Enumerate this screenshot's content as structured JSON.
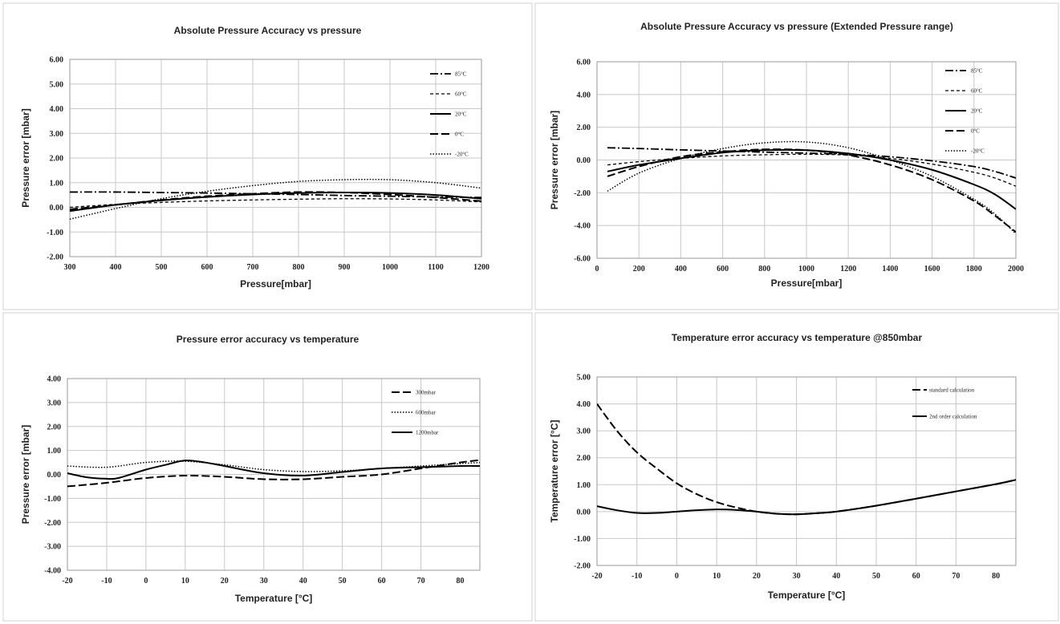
{
  "chart_data": [
    {
      "type": "line",
      "title": "Absolute Pressure Accuracy vs pressure",
      "xlabel": "Pressure[mbar]",
      "ylabel": "Pressure error [mbar]",
      "xlim": [
        300,
        1200
      ],
      "ylim": [
        -2,
        6
      ],
      "xticks": [
        300,
        400,
        500,
        600,
        700,
        800,
        900,
        1000,
        1100,
        1200
      ],
      "xtick_labels": [
        "300",
        "400",
        "500",
        "600",
        "700",
        "800",
        "900",
        "1000",
        "1100",
        "1200"
      ],
      "yticks": [
        -2,
        -1,
        0,
        1,
        2,
        3,
        4,
        5,
        6
      ],
      "ytick_labels": [
        "-2.00",
        "-1.00",
        "0.00",
        "1.00",
        "2.00",
        "3.00",
        "4.00",
        "5.00",
        "6.00"
      ],
      "grid": true,
      "legend_position": "top-right",
      "series": [
        {
          "name": "85°C",
          "dash": "dashdot",
          "x": [
            300,
            400,
            500,
            600,
            700,
            800,
            900,
            1000,
            1100,
            1200
          ],
          "y": [
            0.62,
            0.62,
            0.6,
            0.58,
            0.55,
            0.52,
            0.48,
            0.45,
            0.42,
            0.4
          ]
        },
        {
          "name": "60°C",
          "dash": "short",
          "x": [
            300,
            400,
            500,
            600,
            700,
            800,
            900,
            1000,
            1100,
            1200
          ],
          "y": [
            0.0,
            0.12,
            0.2,
            0.26,
            0.3,
            0.33,
            0.35,
            0.34,
            0.3,
            0.22
          ]
        },
        {
          "name": "20°C",
          "dash": "solid",
          "x": [
            300,
            400,
            500,
            600,
            700,
            800,
            900,
            1000,
            1100,
            1200
          ],
          "y": [
            -0.15,
            0.1,
            0.28,
            0.42,
            0.52,
            0.58,
            0.6,
            0.58,
            0.5,
            0.35
          ]
        },
        {
          "name": "0°C",
          "dash": "long",
          "x": [
            300,
            400,
            500,
            600,
            700,
            800,
            900,
            1000,
            1100,
            1200
          ],
          "y": [
            -0.08,
            0.1,
            0.3,
            0.45,
            0.55,
            0.62,
            0.6,
            0.52,
            0.4,
            0.25
          ]
        },
        {
          "name": "-20°C",
          "dash": "dotted",
          "x": [
            300,
            400,
            500,
            600,
            700,
            800,
            900,
            1000,
            1100,
            1200
          ],
          "y": [
            -0.48,
            -0.05,
            0.35,
            0.65,
            0.88,
            1.05,
            1.12,
            1.12,
            1.0,
            0.78
          ]
        }
      ]
    },
    {
      "type": "line",
      "title": "Absolute Pressure Accuracy vs pressure (Extended Pressure range)",
      "xlabel": "Pressure[mbar]",
      "ylabel": "Pressure error [mbar]",
      "xlim": [
        0,
        2000
      ],
      "ylim": [
        -6,
        6
      ],
      "xticks": [
        0,
        200,
        400,
        600,
        800,
        1000,
        1200,
        1400,
        1600,
        1800,
        2000
      ],
      "xtick_labels": [
        "0",
        "200",
        "400",
        "600",
        "800",
        "1000",
        "1200",
        "1400",
        "1600",
        "1800",
        "2000"
      ],
      "yticks": [
        -6,
        -4,
        -2,
        0,
        2,
        4,
        6
      ],
      "ytick_labels": [
        "-6.00",
        "-4.00",
        "-2.00",
        "0.00",
        "2.00",
        "4.00",
        "6.00"
      ],
      "grid": true,
      "legend_position": "top-right",
      "series": [
        {
          "name": "85°C",
          "dash": "dashdot",
          "x": [
            50,
            200,
            400,
            600,
            800,
            1000,
            1200,
            1400,
            1600,
            1800,
            1900,
            2000
          ],
          "y": [
            0.75,
            0.7,
            0.62,
            0.55,
            0.48,
            0.42,
            0.35,
            0.2,
            -0.05,
            -0.4,
            -0.7,
            -1.1
          ]
        },
        {
          "name": "60°C",
          "dash": "short",
          "x": [
            50,
            200,
            400,
            600,
            800,
            1000,
            1200,
            1400,
            1600,
            1800,
            1900,
            2000
          ],
          "y": [
            -0.3,
            -0.1,
            0.1,
            0.25,
            0.32,
            0.35,
            0.3,
            0.1,
            -0.25,
            -0.75,
            -1.1,
            -1.6
          ]
        },
        {
          "name": "20°C",
          "dash": "solid",
          "x": [
            50,
            200,
            400,
            600,
            800,
            1000,
            1200,
            1400,
            1600,
            1800,
            1900,
            2000
          ],
          "y": [
            -0.7,
            -0.3,
            0.1,
            0.45,
            0.6,
            0.6,
            0.4,
            0.0,
            -0.6,
            -1.5,
            -2.1,
            -3.0
          ]
        },
        {
          "name": "0°C",
          "dash": "long",
          "x": [
            50,
            200,
            400,
            600,
            800,
            1000,
            1200,
            1400,
            1600,
            1800,
            1900,
            2000
          ],
          "y": [
            -1.0,
            -0.4,
            0.2,
            0.5,
            0.65,
            0.6,
            0.3,
            -0.3,
            -1.2,
            -2.5,
            -3.4,
            -4.4
          ]
        },
        {
          "name": "-20°C",
          "dash": "dotted",
          "x": [
            50,
            200,
            400,
            600,
            800,
            1000,
            1200,
            1400,
            1600,
            1800,
            1900,
            2000
          ],
          "y": [
            -1.9,
            -0.8,
            0.1,
            0.7,
            1.05,
            1.1,
            0.75,
            0.0,
            -1.0,
            -2.4,
            -3.3,
            -4.5
          ]
        }
      ]
    },
    {
      "type": "line",
      "title": "Pressure error accuracy vs temperature",
      "xlabel": "Temperature [°C]",
      "ylabel": "Pressure error [mbar]",
      "xlim": [
        -20,
        85
      ],
      "ylim": [
        -4,
        4
      ],
      "xticks": [
        -20,
        -10,
        0,
        10,
        20,
        30,
        40,
        50,
        60,
        70,
        80
      ],
      "xtick_labels": [
        "-20",
        "-10",
        "0",
        "10",
        "20",
        "30",
        "40",
        "50",
        "60",
        "70",
        "80"
      ],
      "yticks": [
        -4,
        -3,
        -2,
        -1,
        0,
        1,
        2,
        3,
        4
      ],
      "ytick_labels": [
        "-4.00",
        "-3.00",
        "-2.00",
        "-1.00",
        "0.00",
        "1.00",
        "2.00",
        "3.00",
        "4.00"
      ],
      "grid": true,
      "legend_position": "top-right",
      "series": [
        {
          "name": "300mbar",
          "dash": "long",
          "x": [
            -20,
            -10,
            0,
            10,
            20,
            30,
            40,
            50,
            60,
            70,
            80,
            85
          ],
          "y": [
            -0.5,
            -0.35,
            -0.15,
            -0.05,
            -0.1,
            -0.2,
            -0.2,
            -0.1,
            0.0,
            0.25,
            0.5,
            0.6
          ]
        },
        {
          "name": "600mbar",
          "dash": "dotted",
          "x": [
            -20,
            -10,
            0,
            10,
            20,
            30,
            40,
            50,
            60,
            70,
            80,
            85
          ],
          "y": [
            0.35,
            0.3,
            0.5,
            0.55,
            0.4,
            0.2,
            0.12,
            0.15,
            0.25,
            0.35,
            0.45,
            0.5
          ]
        },
        {
          "name": "1200mbar",
          "dash": "solid",
          "x": [
            -20,
            -15,
            -10,
            -7,
            0,
            5,
            10,
            15,
            20,
            30,
            40,
            50,
            60,
            70,
            80,
            85
          ],
          "y": [
            0.05,
            -0.12,
            -0.18,
            -0.15,
            0.2,
            0.4,
            0.58,
            0.5,
            0.35,
            0.05,
            -0.05,
            0.1,
            0.25,
            0.3,
            0.35,
            0.35
          ]
        }
      ]
    },
    {
      "type": "line",
      "title": "Temperature error accuracy vs temperature @850mbar",
      "xlabel": "Temperature [°C]",
      "ylabel": "Temperature error [°C]",
      "xlim": [
        -20,
        85
      ],
      "ylim": [
        -2,
        5
      ],
      "xticks": [
        -20,
        -10,
        0,
        10,
        20,
        30,
        40,
        50,
        60,
        70,
        80
      ],
      "xtick_labels": [
        "-20",
        "-10",
        "0",
        "10",
        "20",
        "30",
        "40",
        "50",
        "60",
        "70",
        "80"
      ],
      "yticks": [
        -2,
        -1,
        0,
        1,
        2,
        3,
        4,
        5
      ],
      "ytick_labels": [
        "-2.00",
        "-1.00",
        "0.00",
        "1.00",
        "2.00",
        "3.00",
        "4.00",
        "5.00"
      ],
      "grid": true,
      "legend_position": "top-right",
      "series": [
        {
          "name": "standard calculation",
          "dash": "long",
          "x": [
            -20,
            -15,
            -10,
            -5,
            0,
            5,
            10,
            15,
            20,
            25,
            30,
            35,
            40,
            50,
            60,
            70,
            80,
            85
          ],
          "y": [
            4.0,
            3.0,
            2.2,
            1.6,
            1.05,
            0.65,
            0.35,
            0.15,
            0.0,
            -0.08,
            -0.1,
            -0.06,
            0.0,
            0.22,
            0.48,
            0.75,
            1.02,
            1.18
          ]
        },
        {
          "name": "2nd order calculation",
          "dash": "solid",
          "x": [
            -20,
            -15,
            -10,
            -5,
            0,
            5,
            10,
            15,
            20,
            25,
            30,
            35,
            40,
            50,
            60,
            70,
            80,
            85
          ],
          "y": [
            0.2,
            0.05,
            -0.05,
            -0.05,
            0.0,
            0.05,
            0.08,
            0.06,
            0.0,
            -0.08,
            -0.1,
            -0.06,
            0.0,
            0.22,
            0.48,
            0.75,
            1.02,
            1.18
          ]
        }
      ]
    }
  ]
}
